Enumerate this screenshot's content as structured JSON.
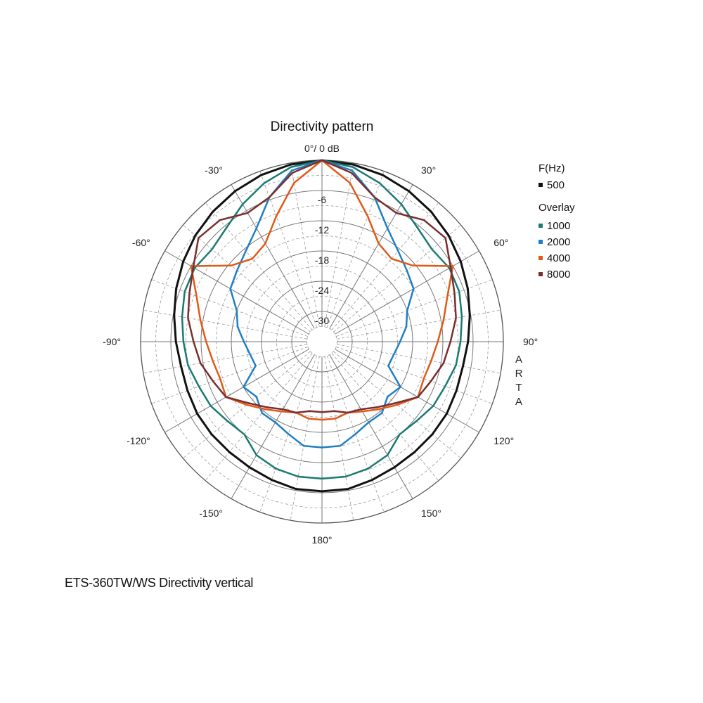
{
  "caption": "ETS-360TW/WS  Directivity vertical",
  "chart_data": {
    "type": "polar",
    "title": "Directivity pattern",
    "top_label": "0°/ 0 dB",
    "rings_db": [
      0,
      -6,
      -12,
      -18,
      -24,
      -30
    ],
    "ring_labels": [
      "-6",
      "-12",
      "-18",
      "-24",
      "-30"
    ],
    "r_range_db": [
      -36,
      0
    ],
    "grid": true,
    "angle_labels": [
      {
        "angle": 30,
        "text": "30°"
      },
      {
        "angle": 60,
        "text": "60°"
      },
      {
        "angle": 90,
        "text": "90°"
      },
      {
        "angle": 120,
        "text": "120°"
      },
      {
        "angle": 150,
        "text": "150°"
      },
      {
        "angle": 180,
        "text": "180°"
      },
      {
        "angle": -150,
        "text": "-150°"
      },
      {
        "angle": -120,
        "text": "-120°"
      },
      {
        "angle": -90,
        "text": "-90°"
      },
      {
        "angle": -60,
        "text": "-60°"
      },
      {
        "angle": -30,
        "text": "-30°"
      }
    ],
    "brand_letters": [
      "A",
      "R",
      "T",
      "A"
    ],
    "legend": {
      "position": "right",
      "title": "F(Hz)",
      "subtitle": "Overlay",
      "items": [
        {
          "name": "500",
          "color": "#111111"
        },
        {
          "name": "1000",
          "color": "#1a7a74"
        },
        {
          "name": "2000",
          "color": "#1f7fc4"
        },
        {
          "name": "4000",
          "color": "#e05a1a"
        },
        {
          "name": "8000",
          "color": "#7a2e2e"
        }
      ]
    },
    "angles_deg": [
      0,
      10,
      20,
      30,
      40,
      50,
      60,
      70,
      80,
      90,
      100,
      110,
      120,
      130,
      140,
      150,
      160,
      170,
      180,
      190,
      200,
      210,
      220,
      230,
      240,
      250,
      260,
      270,
      280,
      290,
      300,
      310,
      320,
      330,
      340,
      350
    ],
    "series": [
      {
        "name": "500",
        "color": "#111111",
        "values": [
          0,
          -0.3,
          -0.8,
          -1.5,
          -2.3,
          -3.2,
          -4.2,
          -5.2,
          -6.2,
          -7,
          -7.6,
          -7.6,
          -7.4,
          -7.4,
          -7.4,
          -7.2,
          -6.8,
          -6.3,
          -6.3,
          -6.3,
          -6.8,
          -7.2,
          -7.4,
          -7.4,
          -7.4,
          -7.6,
          -7.6,
          -7,
          -6.2,
          -5.2,
          -4.2,
          -3.2,
          -2.3,
          -1.5,
          -0.8,
          -0.3
        ]
      },
      {
        "name": "1000",
        "color": "#1a7a74",
        "values": [
          0,
          -0.8,
          -2.5,
          -4.5,
          -6.5,
          -7.5,
          -6.8,
          -7,
          -7.8,
          -8.5,
          -9,
          -10,
          -10.5,
          -11.5,
          -12,
          -10,
          -9.2,
          -8.8,
          -8.8,
          -8.8,
          -9.2,
          -10,
          -12,
          -11.5,
          -10.5,
          -10,
          -9,
          -8.5,
          -7.8,
          -7,
          -6.8,
          -7.5,
          -6.5,
          -4.5,
          -2.5,
          -0.8
        ]
      },
      {
        "name": "2000",
        "color": "#1f7fc4",
        "values": [
          0,
          -1.5,
          -5.5,
          -10,
          -12.5,
          -14,
          -15,
          -18,
          -19,
          -20.5,
          -21.5,
          -22,
          -18,
          -19,
          -17.5,
          -17.5,
          -16.5,
          -15,
          -15,
          -15,
          -16.5,
          -17.5,
          -17.5,
          -19,
          -18,
          -22,
          -21.5,
          -20.5,
          -19,
          -18,
          -15,
          -14,
          -12.5,
          -10,
          -5.5,
          -1.5
        ]
      },
      {
        "name": "4000",
        "color": "#e05a1a",
        "values": [
          0,
          -4,
          -9.5,
          -13.5,
          -14.5,
          -12.5,
          -6,
          -9.5,
          -11.5,
          -13,
          -14,
          -14.5,
          -14,
          -16.5,
          -18.5,
          -20,
          -21,
          -20.5,
          -20.5,
          -20.5,
          -21,
          -20,
          -18.5,
          -16.5,
          -14,
          -14.5,
          -14,
          -13,
          -11.5,
          -9.5,
          -6,
          -12.5,
          -14.5,
          -13.5,
          -9.5,
          -4
        ]
      },
      {
        "name": "8000",
        "color": "#7a2e2e",
        "values": [
          0,
          -2,
          -5.5,
          -6.5,
          -4.5,
          -4,
          -6.5,
          -8,
          -9,
          -10.5,
          -11.5,
          -13,
          -14,
          -17,
          -19,
          -20.5,
          -21,
          -22,
          -22,
          -22,
          -21,
          -20.5,
          -19,
          -17,
          -14,
          -13,
          -11.5,
          -10.5,
          -9,
          -8,
          -6.5,
          -4,
          -4.5,
          -6.5,
          -5.5,
          -2
        ]
      }
    ]
  }
}
